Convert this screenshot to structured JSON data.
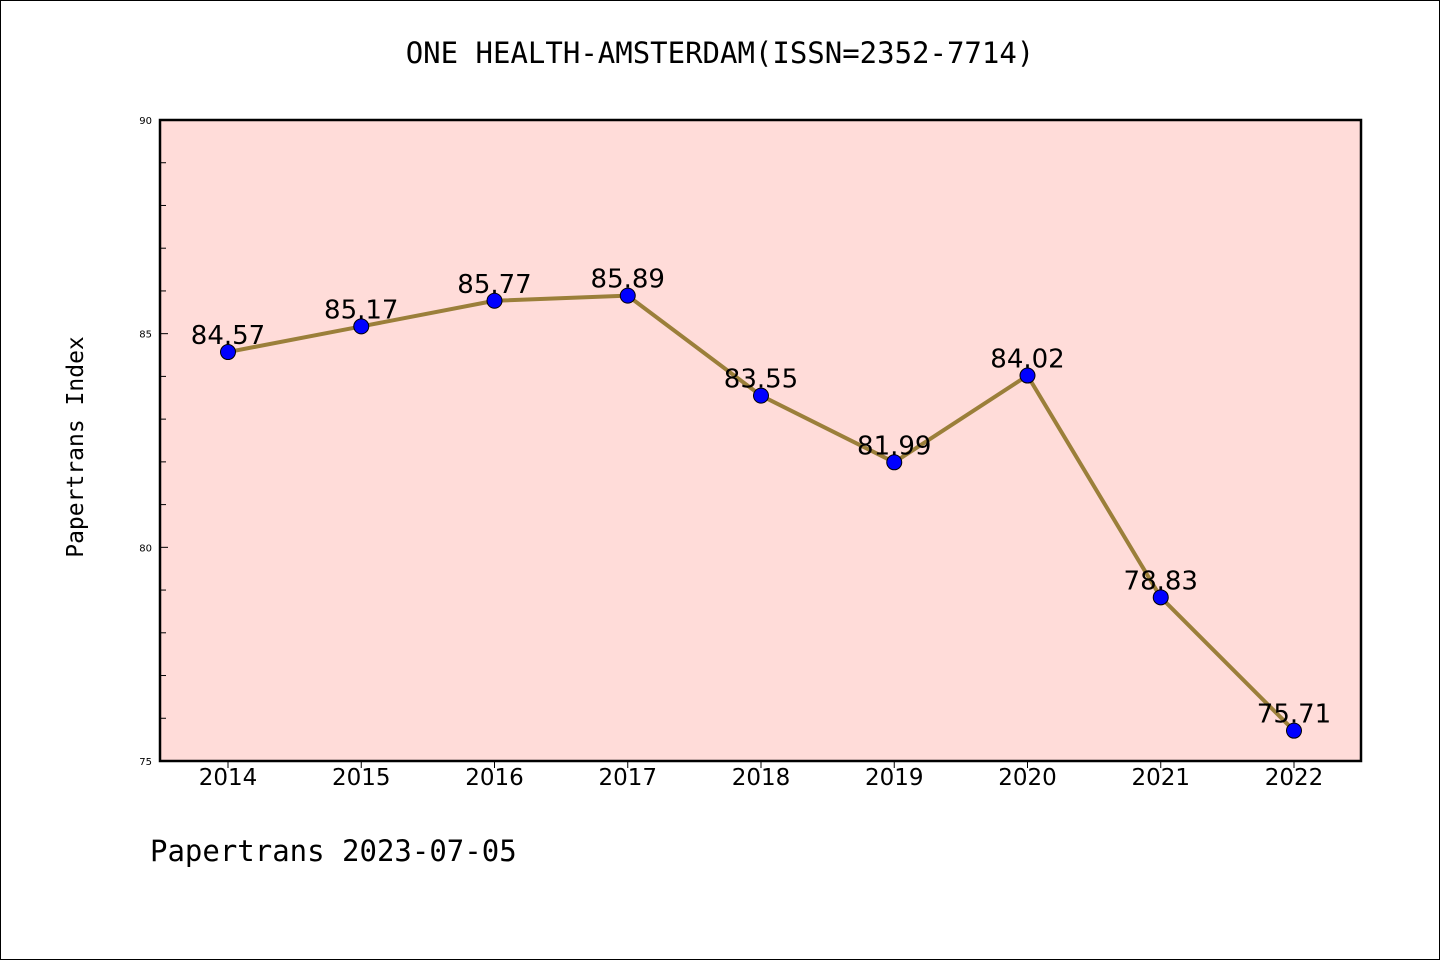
{
  "page": {
    "footer": "Papertrans 2023-07-05"
  },
  "chart_data": {
    "type": "line",
    "title": "ONE HEALTH-AMSTERDAM(ISSN=2352-7714)",
    "xlabel": "",
    "ylabel": "Papertrans Index",
    "x": [
      "2014",
      "2015",
      "2016",
      "2017",
      "2018",
      "2019",
      "2020",
      "2021",
      "2022"
    ],
    "series": [
      {
        "values": [
          84.57,
          85.17,
          85.77,
          85.89,
          83.55,
          81.99,
          84.02,
          78.83,
          75.71
        ],
        "labels": [
          "84.57",
          "85.17",
          "85.77",
          "85.89",
          "83.55",
          "81.99",
          "84.02",
          "78.83",
          "75.71"
        ],
        "line_color": "#9b7f3a",
        "marker_color": "#0000ff"
      }
    ],
    "ylim": [
      75,
      90
    ],
    "yticks": [
      "75",
      "80",
      "85",
      "90"
    ],
    "plot_background": "#ffdcd9",
    "grid": false,
    "legend": "none"
  }
}
